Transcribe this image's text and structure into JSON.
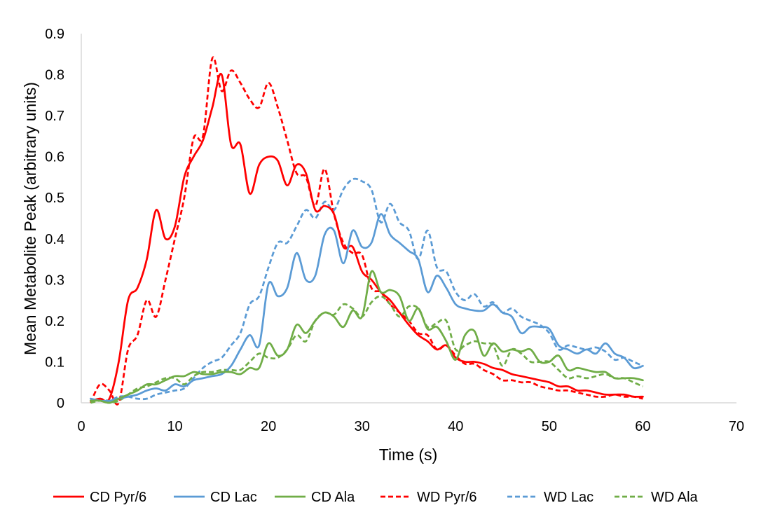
{
  "chart_data": {
    "type": "line",
    "title": "",
    "xlabel": "Time (s)",
    "ylabel": "Mean Metabolite Peak (arbitrary units)",
    "xlim": [
      0,
      70
    ],
    "ylim": [
      0,
      0.9
    ],
    "xticks": [
      0,
      10,
      20,
      30,
      40,
      50,
      60,
      70
    ],
    "yticks": [
      0,
      0.1,
      0.2,
      0.3,
      0.4,
      0.5,
      0.6,
      0.7,
      0.8,
      0.9
    ],
    "xtick_labels": [
      "0",
      "10",
      "20",
      "30",
      "40",
      "50",
      "60",
      "70"
    ],
    "ytick_labels": [
      "0",
      "0.1",
      "0.2",
      "0.3",
      "0.4",
      "0.5",
      "0.6",
      "0.7",
      "0.8",
      "0.9"
    ],
    "grid": false,
    "legend_position": "bottom",
    "colors": {
      "red": "#ff0000",
      "blue": "#5b9bd5",
      "green": "#70ad47"
    },
    "series": [
      {
        "name": "CD Pyr/6",
        "color": "#ff0000",
        "dash": "solid",
        "x": [
          1,
          2,
          3,
          4,
          5,
          6,
          7,
          8,
          9,
          10,
          11,
          12,
          13,
          14,
          15,
          16,
          17,
          18,
          19,
          20,
          21,
          22,
          23,
          24,
          25,
          26,
          27,
          28,
          29,
          30,
          31,
          32,
          33,
          34,
          35,
          36,
          37,
          38,
          39,
          40,
          41,
          42,
          43,
          44,
          45,
          46,
          47,
          48,
          49,
          50,
          51,
          52,
          53,
          54,
          55,
          56,
          57,
          58,
          59,
          60
        ],
        "y": [
          0.005,
          0.01,
          0.01,
          0.1,
          0.25,
          0.28,
          0.35,
          0.47,
          0.4,
          0.43,
          0.55,
          0.6,
          0.64,
          0.72,
          0.8,
          0.63,
          0.63,
          0.51,
          0.58,
          0.6,
          0.59,
          0.53,
          0.58,
          0.56,
          0.47,
          0.48,
          0.46,
          0.38,
          0.38,
          0.32,
          0.3,
          0.27,
          0.25,
          0.22,
          0.19,
          0.165,
          0.15,
          0.13,
          0.14,
          0.11,
          0.1,
          0.1,
          0.095,
          0.085,
          0.08,
          0.07,
          0.065,
          0.06,
          0.055,
          0.05,
          0.04,
          0.04,
          0.03,
          0.03,
          0.025,
          0.02,
          0.02,
          0.02,
          0.015,
          0.015
        ]
      },
      {
        "name": "CD Lac",
        "color": "#5b9bd5",
        "dash": "solid",
        "x": [
          1,
          2,
          3,
          4,
          5,
          6,
          7,
          8,
          9,
          10,
          11,
          12,
          13,
          14,
          15,
          16,
          17,
          18,
          19,
          20,
          21,
          22,
          23,
          24,
          25,
          26,
          27,
          28,
          29,
          30,
          31,
          32,
          33,
          34,
          35,
          36,
          37,
          38,
          39,
          40,
          41,
          42,
          43,
          44,
          45,
          46,
          47,
          48,
          49,
          50,
          51,
          52,
          53,
          54,
          55,
          56,
          57,
          58,
          59,
          60
        ],
        "y": [
          0.01,
          0.005,
          0.005,
          0.01,
          0.015,
          0.02,
          0.03,
          0.035,
          0.03,
          0.045,
          0.04,
          0.055,
          0.06,
          0.065,
          0.07,
          0.09,
          0.13,
          0.165,
          0.14,
          0.29,
          0.26,
          0.28,
          0.365,
          0.3,
          0.31,
          0.41,
          0.42,
          0.34,
          0.42,
          0.38,
          0.39,
          0.46,
          0.41,
          0.39,
          0.37,
          0.35,
          0.27,
          0.31,
          0.28,
          0.24,
          0.23,
          0.225,
          0.225,
          0.24,
          0.22,
          0.21,
          0.17,
          0.185,
          0.185,
          0.18,
          0.14,
          0.13,
          0.12,
          0.13,
          0.12,
          0.145,
          0.12,
          0.11,
          0.085,
          0.09
        ]
      },
      {
        "name": "CD Ala",
        "color": "#70ad47",
        "dash": "solid",
        "x": [
          1,
          2,
          3,
          4,
          5,
          6,
          7,
          8,
          9,
          10,
          11,
          12,
          13,
          14,
          15,
          16,
          17,
          18,
          19,
          20,
          21,
          22,
          23,
          24,
          25,
          26,
          27,
          28,
          29,
          30,
          31,
          32,
          33,
          34,
          35,
          36,
          37,
          38,
          39,
          40,
          41,
          42,
          43,
          44,
          45,
          46,
          47,
          48,
          49,
          50,
          51,
          52,
          53,
          54,
          55,
          56,
          57,
          58,
          59,
          60
        ],
        "y": [
          0.005,
          0.005,
          0.0,
          0.01,
          0.02,
          0.03,
          0.045,
          0.045,
          0.055,
          0.065,
          0.065,
          0.075,
          0.07,
          0.07,
          0.075,
          0.075,
          0.07,
          0.085,
          0.085,
          0.145,
          0.115,
          0.13,
          0.19,
          0.17,
          0.2,
          0.22,
          0.21,
          0.185,
          0.225,
          0.21,
          0.32,
          0.27,
          0.275,
          0.26,
          0.2,
          0.23,
          0.18,
          0.185,
          0.15,
          0.105,
          0.165,
          0.175,
          0.115,
          0.145,
          0.125,
          0.13,
          0.125,
          0.13,
          0.1,
          0.1,
          0.115,
          0.08,
          0.085,
          0.08,
          0.075,
          0.075,
          0.06,
          0.06,
          0.06,
          0.055
        ]
      },
      {
        "name": "WD Pyr/6",
        "color": "#ff0000",
        "dash": "dashed",
        "x": [
          1,
          2,
          3,
          4,
          5,
          6,
          7,
          8,
          9,
          10,
          11,
          12,
          13,
          14,
          15,
          16,
          17,
          18,
          19,
          20,
          21,
          22,
          23,
          24,
          25,
          26,
          27,
          28,
          29,
          30,
          31,
          32,
          33,
          34,
          35,
          36,
          37,
          38,
          39,
          40,
          41,
          42,
          43,
          44,
          45,
          46,
          47,
          48,
          49,
          50,
          51,
          52,
          53,
          54,
          55,
          56,
          57,
          58,
          59,
          60
        ],
        "y": [
          0.0,
          0.045,
          0.03,
          0.0,
          0.13,
          0.165,
          0.25,
          0.21,
          0.3,
          0.4,
          0.5,
          0.645,
          0.65,
          0.84,
          0.76,
          0.81,
          0.78,
          0.74,
          0.72,
          0.78,
          0.72,
          0.64,
          0.56,
          0.55,
          0.48,
          0.57,
          0.46,
          0.39,
          0.365,
          0.36,
          0.28,
          0.27,
          0.24,
          0.22,
          0.2,
          0.17,
          0.165,
          0.13,
          0.14,
          0.115,
          0.095,
          0.095,
          0.08,
          0.07,
          0.055,
          0.055,
          0.05,
          0.05,
          0.04,
          0.035,
          0.03,
          0.03,
          0.025,
          0.02,
          0.015,
          0.015,
          0.02,
          0.015,
          0.015,
          0.01
        ]
      },
      {
        "name": "WD Lac",
        "color": "#5b9bd5",
        "dash": "dashed",
        "x": [
          1,
          2,
          3,
          4,
          5,
          6,
          7,
          8,
          9,
          10,
          11,
          12,
          13,
          14,
          15,
          16,
          17,
          18,
          19,
          20,
          21,
          22,
          23,
          24,
          25,
          26,
          27,
          28,
          29,
          30,
          31,
          32,
          33,
          34,
          35,
          36,
          37,
          38,
          39,
          40,
          41,
          42,
          43,
          44,
          45,
          46,
          47,
          48,
          49,
          50,
          51,
          52,
          53,
          54,
          55,
          56,
          57,
          58,
          59,
          60
        ],
        "y": [
          0.005,
          0.01,
          0.005,
          0.015,
          0.015,
          0.01,
          0.01,
          0.02,
          0.025,
          0.03,
          0.035,
          0.06,
          0.085,
          0.1,
          0.11,
          0.14,
          0.17,
          0.24,
          0.26,
          0.33,
          0.39,
          0.39,
          0.43,
          0.47,
          0.45,
          0.49,
          0.47,
          0.52,
          0.545,
          0.54,
          0.52,
          0.44,
          0.485,
          0.44,
          0.42,
          0.35,
          0.42,
          0.33,
          0.32,
          0.27,
          0.25,
          0.265,
          0.235,
          0.245,
          0.22,
          0.23,
          0.21,
          0.2,
          0.19,
          0.17,
          0.13,
          0.14,
          0.135,
          0.13,
          0.135,
          0.125,
          0.105,
          0.11,
          0.1,
          0.09
        ]
      },
      {
        "name": "WD Ala",
        "color": "#70ad47",
        "dash": "dashed",
        "x": [
          1,
          2,
          3,
          4,
          5,
          6,
          7,
          8,
          9,
          10,
          11,
          12,
          13,
          14,
          15,
          16,
          17,
          18,
          19,
          20,
          21,
          22,
          23,
          24,
          25,
          26,
          27,
          28,
          29,
          30,
          31,
          32,
          33,
          34,
          35,
          36,
          37,
          38,
          39,
          40,
          41,
          42,
          43,
          44,
          45,
          46,
          47,
          48,
          49,
          50,
          51,
          52,
          53,
          54,
          55,
          56,
          57,
          58,
          59,
          60
        ],
        "y": [
          0.0,
          0.005,
          0.0,
          0.005,
          0.02,
          0.035,
          0.04,
          0.05,
          0.06,
          0.06,
          0.045,
          0.065,
          0.075,
          0.075,
          0.08,
          0.08,
          0.08,
          0.1,
          0.12,
          0.11,
          0.11,
          0.13,
          0.165,
          0.15,
          0.2,
          0.22,
          0.215,
          0.24,
          0.23,
          0.21,
          0.245,
          0.26,
          0.24,
          0.21,
          0.235,
          0.23,
          0.185,
          0.195,
          0.2,
          0.13,
          0.14,
          0.15,
          0.145,
          0.14,
          0.09,
          0.13,
          0.12,
          0.1,
          0.1,
          0.1,
          0.08,
          0.06,
          0.065,
          0.06,
          0.065,
          0.07,
          0.06,
          0.06,
          0.05,
          0.04
        ]
      }
    ]
  }
}
